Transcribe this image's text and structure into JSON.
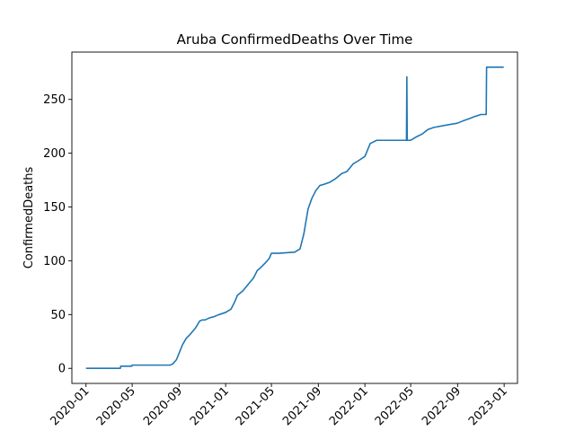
{
  "chart_data": {
    "type": "line",
    "title": "Aruba  ConfirmedDeaths Over Time",
    "xlabel": "",
    "ylabel": "ConfirmedDeaths",
    "xlim": [
      "2019-11-25",
      "2023-02-05"
    ],
    "ylim": [
      -14,
      294
    ],
    "x_ticks": [
      "2020-01",
      "2020-05",
      "2020-09",
      "2021-01",
      "2021-05",
      "2021-09",
      "2022-01",
      "2022-05",
      "2022-09",
      "2023-01"
    ],
    "y_ticks": [
      0,
      50,
      100,
      150,
      200,
      250
    ],
    "grid": false,
    "legend": "none",
    "series_color": "#1f77b4",
    "series": [
      {
        "x": [
          "2020-01-01",
          "2020-03-31",
          "2020-04-01",
          "2020-04-30",
          "2020-05-01",
          "2020-08-08",
          "2020-08-15",
          "2020-08-25",
          "2020-09-01",
          "2020-09-10",
          "2020-09-20",
          "2020-10-01",
          "2020-10-15",
          "2020-10-25",
          "2020-11-01",
          "2020-11-08",
          "2020-11-20",
          "2020-12-01",
          "2020-12-15",
          "2021-01-01",
          "2021-01-15",
          "2021-01-25",
          "2021-02-01",
          "2021-02-15",
          "2021-03-01",
          "2021-03-15",
          "2021-03-25",
          "2021-04-01",
          "2021-04-15",
          "2021-04-25",
          "2021-05-01",
          "2021-05-10",
          "2021-05-20",
          "2021-07-01",
          "2021-07-15",
          "2021-07-25",
          "2021-08-05",
          "2021-08-15",
          "2021-08-25",
          "2021-09-05",
          "2021-09-15",
          "2021-10-01",
          "2021-10-15",
          "2021-11-01",
          "2021-11-15",
          "2021-12-01",
          "2021-12-15",
          "2022-01-01",
          "2022-01-15",
          "2022-02-01",
          "2022-02-15",
          "2022-03-01",
          "2022-03-05",
          "2022-03-15",
          "2022-04-20",
          "2022-04-21",
          "2022-04-22",
          "2022-04-23",
          "2022-05-01",
          "2022-05-15",
          "2022-06-01",
          "2022-06-15",
          "2022-07-01",
          "2022-08-01",
          "2022-09-01",
          "2022-09-15",
          "2022-10-01",
          "2022-10-15",
          "2022-11-01",
          "2022-11-15",
          "2022-11-16",
          "2022-12-01",
          "2022-12-31"
        ],
        "y": [
          0,
          0,
          2,
          2,
          3,
          3,
          4,
          8,
          14,
          22,
          28,
          32,
          38,
          44,
          45,
          45,
          47,
          48,
          50,
          52,
          55,
          62,
          68,
          72,
          78,
          84,
          91,
          93,
          98,
          102,
          107,
          107,
          107,
          108,
          111,
          125,
          148,
          158,
          165,
          170,
          171,
          173,
          176,
          181,
          183,
          190,
          193,
          197,
          209,
          212,
          212,
          212,
          212,
          212,
          212,
          271,
          212,
          212,
          212,
          215,
          218,
          222,
          224,
          226,
          228,
          230,
          232,
          234,
          236,
          236,
          280,
          280,
          280
        ]
      }
    ]
  }
}
